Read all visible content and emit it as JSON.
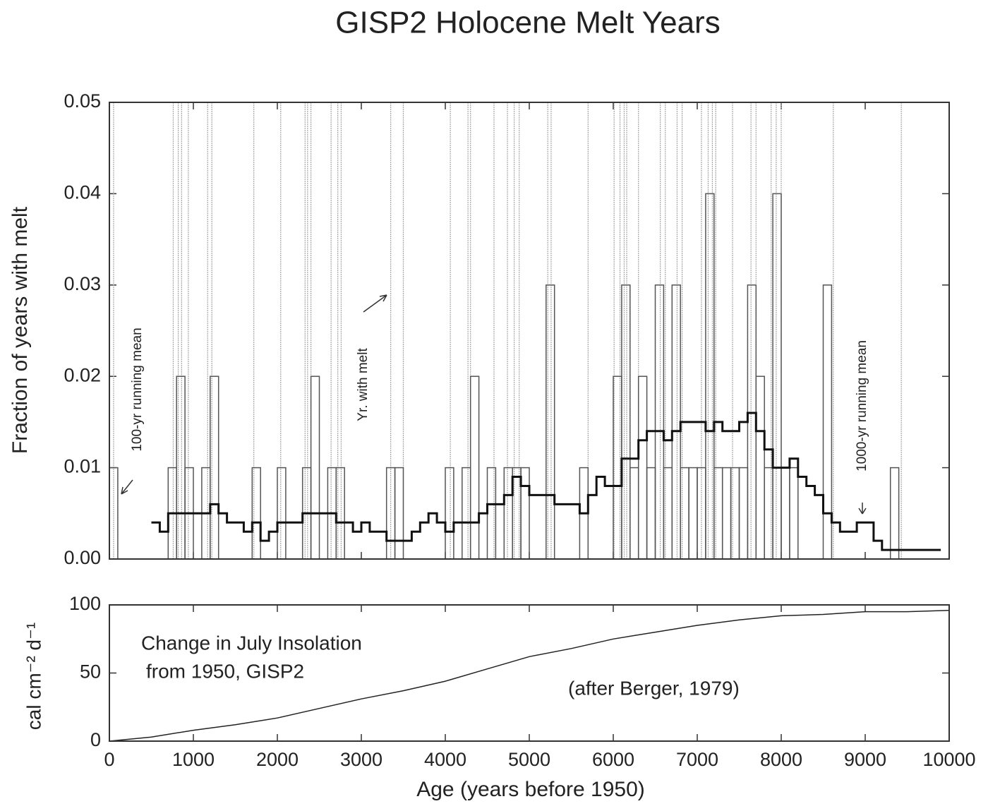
{
  "chart_data": [
    {
      "type": "histogram",
      "title": "GISP2 Holocene Melt Years",
      "ylabel": "Fraction of years with melt",
      "xlim": [
        0,
        10000
      ],
      "xticks": [
        0,
        1000,
        2000,
        3000,
        4000,
        5000,
        6000,
        7000,
        8000,
        9000,
        10000
      ],
      "ylim": [
        0,
        0.05
      ],
      "yticks": [
        {
          "value": 0,
          "label": "0.00"
        },
        0.01,
        0.02,
        0.03,
        0.04,
        0.05
      ],
      "series": [
        {
          "name": "100-yr running mean",
          "type": "histogram",
          "color": "#555555",
          "bins": [
            0,
            100,
            200,
            300,
            400,
            500,
            600,
            700,
            800,
            900,
            1000,
            1100,
            1200,
            1300,
            1400,
            1500,
            1600,
            1700,
            1800,
            1900,
            2000,
            2100,
            2200,
            2300,
            2400,
            2500,
            2600,
            2700,
            2800,
            2900,
            3000,
            3100,
            3200,
            3300,
            3400,
            3500,
            3600,
            3700,
            3800,
            3900,
            4000,
            4100,
            4200,
            4300,
            4400,
            4500,
            4600,
            4700,
            4800,
            4900,
            5000,
            5100,
            5200,
            5300,
            5400,
            5500,
            5600,
            5700,
            5800,
            5900,
            6000,
            6100,
            6200,
            6300,
            6400,
            6500,
            6600,
            6700,
            6800,
            6900,
            7000,
            7100,
            7200,
            7300,
            7400,
            7500,
            7600,
            7700,
            7800,
            7900,
            8000,
            8100,
            8200,
            8300,
            8400,
            8500,
            8600,
            8700,
            8800,
            8900,
            9000,
            9100,
            9200,
            9300,
            9400,
            9500,
            9600,
            9700,
            9800,
            9900,
            10000
          ],
          "values": [
            0.01,
            0,
            0,
            0,
            0,
            0,
            0,
            0.01,
            0.02,
            0.01,
            0,
            0.01,
            0.02,
            0,
            0,
            0,
            0,
            0.01,
            0,
            0,
            0.01,
            0,
            0,
            0.01,
            0.02,
            0,
            0.01,
            0.01,
            0,
            0,
            0,
            0,
            0,
            0.01,
            0.01,
            0,
            0,
            0,
            0,
            0,
            0.01,
            0,
            0.01,
            0.02,
            0,
            0.01,
            0,
            0.01,
            0.01,
            0.01,
            0,
            0,
            0.03,
            0,
            0,
            0,
            0.01,
            0,
            0,
            0,
            0.02,
            0.03,
            0.01,
            0.02,
            0.01,
            0.03,
            0.01,
            0.03,
            0.01,
            0.01,
            0.01,
            0.04,
            0.01,
            0.01,
            0.01,
            0.01,
            0.03,
            0.02,
            0.01,
            0.04,
            0.01,
            0.01,
            0,
            0,
            0,
            0.03,
            0,
            0,
            0,
            0,
            0,
            0,
            0,
            0.01,
            0,
            0,
            0,
            0,
            0,
            0
          ]
        },
        {
          "name": "1000-yr running mean",
          "type": "step",
          "color": "#111111",
          "x": [
            500,
            600,
            700,
            800,
            900,
            1000,
            1100,
            1200,
            1300,
            1400,
            1500,
            1600,
            1700,
            1800,
            1900,
            2000,
            2100,
            2200,
            2300,
            2400,
            2500,
            2600,
            2700,
            2800,
            2900,
            3000,
            3100,
            3200,
            3300,
            3400,
            3500,
            3600,
            3700,
            3800,
            3900,
            4000,
            4100,
            4200,
            4300,
            4400,
            4500,
            4600,
            4700,
            4800,
            4900,
            5000,
            5100,
            5200,
            5300,
            5400,
            5500,
            5600,
            5700,
            5800,
            5900,
            6000,
            6100,
            6200,
            6300,
            6400,
            6500,
            6600,
            6700,
            6800,
            6900,
            7000,
            7100,
            7200,
            7300,
            7400,
            7500,
            7600,
            7700,
            7800,
            7900,
            8000,
            8100,
            8200,
            8300,
            8400,
            8500,
            8600,
            8700,
            8800,
            8900,
            9000,
            9100,
            9200,
            9300,
            9400,
            9500,
            9600,
            9700,
            9800,
            9900
          ],
          "values": [
            0.004,
            0.003,
            0.005,
            0.005,
            0.005,
            0.005,
            0.005,
            0.006,
            0.005,
            0.004,
            0.004,
            0.003,
            0.004,
            0.002,
            0.003,
            0.004,
            0.004,
            0.004,
            0.005,
            0.005,
            0.005,
            0.005,
            0.004,
            0.004,
            0.003,
            0.004,
            0.003,
            0.003,
            0.002,
            0.002,
            0.002,
            0.003,
            0.004,
            0.005,
            0.004,
            0.003,
            0.004,
            0.004,
            0.004,
            0.005,
            0.006,
            0.006,
            0.007,
            0.009,
            0.008,
            0.007,
            0.007,
            0.007,
            0.006,
            0.006,
            0.006,
            0.005,
            0.007,
            0.009,
            0.008,
            0.008,
            0.011,
            0.011,
            0.013,
            0.014,
            0.014,
            0.013,
            0.014,
            0.015,
            0.015,
            0.015,
            0.014,
            0.015,
            0.014,
            0.014,
            0.015,
            0.016,
            0.014,
            0.012,
            0.01,
            0.01,
            0.011,
            0.009,
            0.008,
            0.007,
            0.005,
            0.004,
            0.003,
            0.003,
            0.004,
            0.004,
            0.002,
            0.001,
            0.001,
            0.001,
            0.001,
            0.001,
            0.001,
            0.001,
            0.001
          ]
        },
        {
          "name": "Yr. with melt",
          "type": "event",
          "color": "#aaaaaa",
          "x": [
            50,
            760,
            820,
            860,
            940,
            1170,
            1220,
            1720,
            2040,
            2330,
            2360,
            2400,
            2640,
            2720,
            2760,
            3350,
            3500,
            4060,
            4270,
            4300,
            4580,
            4740,
            4820,
            4880,
            5220,
            5260,
            5700,
            6010,
            6080,
            6130,
            6160,
            6300,
            6560,
            6620,
            6760,
            6820,
            7050,
            7130,
            7180,
            7220,
            7420,
            7640,
            7700,
            7880,
            7940,
            8000,
            8620,
            9430
          ]
        }
      ]
    },
    {
      "type": "line",
      "xlabel": "Age (years before 1950)",
      "ylabel": "cal cm⁻² d⁻¹",
      "annotations": [
        "Change in July Insolation",
        "from 1950, GISP2",
        "(after Berger, 1979)"
      ],
      "xlim": [
        0,
        10000
      ],
      "xticks": [
        0,
        1000,
        2000,
        3000,
        4000,
        5000,
        6000,
        7000,
        8000,
        9000,
        10000
      ],
      "ylim": [
        0,
        100
      ],
      "yticks": [
        0,
        50,
        100
      ],
      "color": "#222222",
      "x": [
        0,
        500,
        1000,
        1500,
        2000,
        2500,
        3000,
        3500,
        4000,
        4500,
        5000,
        5500,
        6000,
        6500,
        7000,
        7500,
        8000,
        8500,
        9000,
        9500,
        10000
      ],
      "values": [
        0,
        3,
        8,
        12,
        17,
        24,
        31,
        37,
        44,
        53,
        62,
        68,
        75,
        80,
        85,
        89,
        92,
        93,
        95,
        95,
        96
      ]
    }
  ]
}
